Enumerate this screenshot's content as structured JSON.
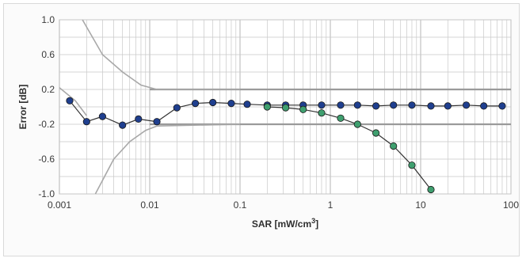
{
  "chart_data": {
    "type": "line",
    "xlabel": "SAR [mW/cm",
    "xlabel_sup": "3",
    "xlabel_end": "]",
    "ylabel": "Error [dB]",
    "x_scale": "log",
    "xlim": [
      0.001,
      100
    ],
    "ylim": [
      -1.0,
      1.0
    ],
    "x_ticks": [
      {
        "value": 0.001,
        "label": "0.001"
      },
      {
        "value": 0.01,
        "label": "0.01"
      },
      {
        "value": 0.1,
        "label": "0.1"
      },
      {
        "value": 1,
        "label": "1"
      },
      {
        "value": 10,
        "label": "10"
      },
      {
        "value": 100,
        "label": "100"
      }
    ],
    "y_ticks": [
      {
        "value": 1.0,
        "label": "1.0"
      },
      {
        "value": 0.6,
        "label": "0.6"
      },
      {
        "value": 0.2,
        "label": "0.2"
      },
      {
        "value": -0.2,
        "label": "-0.2"
      },
      {
        "value": -0.6,
        "label": "-0.6"
      },
      {
        "value": -1.0,
        "label": "-1.0"
      }
    ],
    "grid": true,
    "legend": "none",
    "colors": {
      "series_blue": "#1f3f8f",
      "series_green": "#3f9f6f",
      "limit_band": "#9a9a9a",
      "grid": "#c8c8c8"
    },
    "reference_lines": [
      {
        "y": 0.2
      },
      {
        "y": -0.2
      }
    ],
    "series": [
      {
        "color": "#1f3f8f",
        "marker": "circle",
        "points": [
          [
            0.0013,
            0.07
          ],
          [
            0.002,
            -0.17
          ],
          [
            0.003,
            -0.11
          ],
          [
            0.005,
            -0.21
          ],
          [
            0.0075,
            -0.14
          ],
          [
            0.012,
            -0.17
          ],
          [
            0.02,
            -0.01
          ],
          [
            0.032,
            0.04
          ],
          [
            0.05,
            0.05
          ],
          [
            0.08,
            0.04
          ],
          [
            0.12,
            0.03
          ],
          [
            0.2,
            0.02
          ],
          [
            0.32,
            0.02
          ],
          [
            0.5,
            0.02
          ],
          [
            0.8,
            0.02
          ],
          [
            1.3,
            0.02
          ],
          [
            2.0,
            0.02
          ],
          [
            3.2,
            0.01
          ],
          [
            5.0,
            0.02
          ],
          [
            8.0,
            0.02
          ],
          [
            13,
            0.01
          ],
          [
            20,
            0.01
          ],
          [
            32,
            0.02
          ],
          [
            50,
            0.01
          ],
          [
            80,
            0.01
          ]
        ]
      },
      {
        "color": "#3f9f6f",
        "marker": "circle",
        "points": [
          [
            0.2,
            0.0
          ],
          [
            0.32,
            -0.01
          ],
          [
            0.5,
            -0.03
          ],
          [
            0.8,
            -0.07
          ],
          [
            1.3,
            -0.13
          ],
          [
            2.0,
            -0.2
          ],
          [
            3.2,
            -0.3
          ],
          [
            5.0,
            -0.45
          ],
          [
            8.0,
            -0.67
          ],
          [
            13,
            -0.95
          ]
        ]
      }
    ],
    "limit_curves": [
      {
        "points": [
          [
            0.0018,
            1.0
          ],
          [
            0.003,
            0.6
          ],
          [
            0.005,
            0.4
          ],
          [
            0.008,
            0.25
          ],
          [
            0.012,
            0.2
          ],
          [
            0.1,
            0.2
          ]
        ]
      },
      {
        "points": [
          [
            0.0025,
            -1.0
          ],
          [
            0.004,
            -0.6
          ],
          [
            0.006,
            -0.4
          ],
          [
            0.009,
            -0.27
          ],
          [
            0.012,
            -0.22
          ],
          [
            0.1,
            -0.2
          ]
        ]
      },
      {
        "points": [
          [
            0.001,
            0.22
          ],
          [
            0.0015,
            0.07
          ],
          [
            0.002,
            -0.1
          ]
        ]
      }
    ]
  }
}
